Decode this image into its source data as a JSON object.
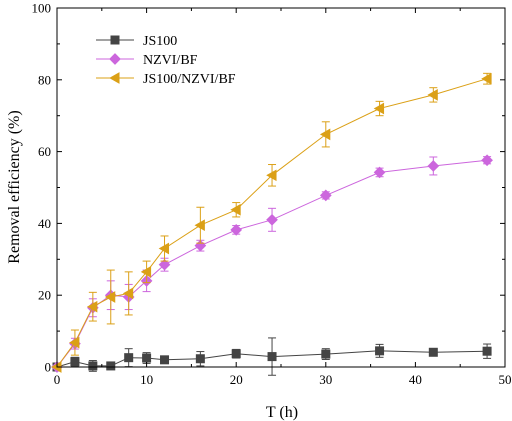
{
  "chart_data": {
    "type": "line",
    "xlabel": "T (h)",
    "ylabel": "Removal efficiency (%)",
    "xlim": [
      0,
      50
    ],
    "ylim": [
      0,
      100
    ],
    "xticks": [
      0,
      10,
      20,
      30,
      40,
      50
    ],
    "yticks": [
      0,
      20,
      40,
      60,
      80,
      100
    ],
    "xtick_labels": [
      "0",
      "10",
      "20",
      "30",
      "40",
      "50"
    ],
    "ytick_labels": [
      "0",
      "20",
      "40",
      "60",
      "80",
      "100"
    ],
    "grid": false,
    "legend_position": "top-left",
    "series": [
      {
        "name": "JS100",
        "color": "#444444",
        "marker": "square",
        "x": [
          0,
          2,
          4,
          6,
          8,
          10,
          12,
          16,
          20,
          24,
          30,
          36,
          42,
          48
        ],
        "y": [
          0,
          1.5,
          0.3,
          0.3,
          2.6,
          2.5,
          2.0,
          2.3,
          3.7,
          2.9,
          3.6,
          4.5,
          4.1,
          4.4
        ],
        "err": [
          0,
          1.2,
          1.5,
          0.5,
          2.5,
          1.5,
          0.8,
          2.0,
          1.2,
          5.2,
          1.5,
          1.8,
          0.8,
          2.0
        ]
      },
      {
        "name": "NZVI/BF",
        "color": "#cc66dd",
        "marker": "diamond",
        "x": [
          0,
          2,
          4,
          6,
          8,
          10,
          12,
          16,
          20,
          24,
          30,
          36,
          42,
          48
        ],
        "y": [
          0,
          6.5,
          16.5,
          20.0,
          19.5,
          24.0,
          28.5,
          33.8,
          38.2,
          41.0,
          47.8,
          54.2,
          56.0,
          57.6
        ],
        "err": [
          0,
          1.5,
          2.5,
          4.0,
          3.5,
          3.0,
          1.8,
          1.5,
          1.2,
          3.2,
          1.0,
          1.2,
          2.5,
          1.0
        ]
      },
      {
        "name": "JS100/NZVI/BF",
        "color": "#dba016",
        "marker": "triangle-left",
        "x": [
          0,
          2,
          4,
          6,
          8,
          10,
          12,
          16,
          20,
          24,
          30,
          36,
          42,
          48
        ],
        "y": [
          0,
          6.8,
          16.8,
          19.5,
          20.5,
          26.5,
          33.0,
          39.5,
          43.8,
          53.4,
          64.8,
          72.0,
          75.8,
          80.3
        ],
        "err": [
          0,
          3.5,
          4.0,
          7.5,
          6.0,
          3.0,
          3.5,
          5.0,
          2.0,
          3.0,
          3.5,
          2.0,
          2.0,
          1.5
        ]
      }
    ]
  }
}
